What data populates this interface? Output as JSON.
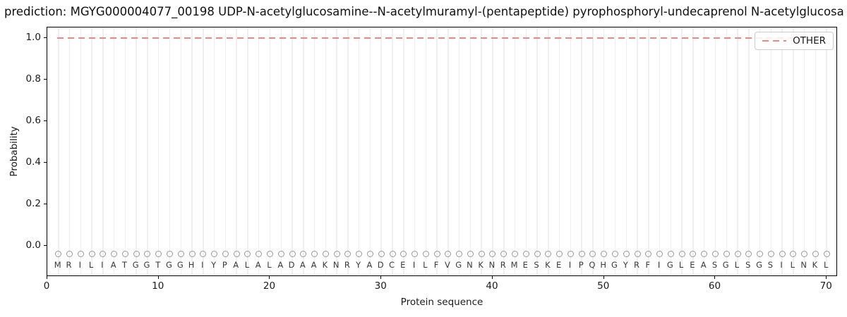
{
  "colors": {
    "other_line": "#ee8888",
    "grid": "#efefef",
    "marker_stroke": "#999999",
    "residue_letter": "#3a3a3a",
    "spine": "#000000"
  },
  "chart_data": {
    "type": "line",
    "title": "prediction: MGYG000004077_00198 UDP-N-acetylglucosamine--N-acetylmuramyl-(pentapeptide) pyrophosphoryl-undecaprenol N-acetylglucosa",
    "xlabel": "Protein sequence",
    "ylabel": "Probability",
    "xlim": [
      0,
      71
    ],
    "ylim": [
      -0.15,
      1.05
    ],
    "x_ticks": [
      {
        "v": 0,
        "label": "0"
      },
      {
        "v": 10,
        "label": "10"
      },
      {
        "v": 20,
        "label": "20"
      },
      {
        "v": 30,
        "label": "30"
      },
      {
        "v": 40,
        "label": "40"
      },
      {
        "v": 50,
        "label": "50"
      },
      {
        "v": 60,
        "label": "60"
      },
      {
        "v": 70,
        "label": "70"
      }
    ],
    "y_ticks": [
      {
        "v": 0.0,
        "label": "0.0"
      },
      {
        "v": 0.2,
        "label": "0.2"
      },
      {
        "v": 0.4,
        "label": "0.4"
      },
      {
        "v": 0.6,
        "label": "0.6"
      },
      {
        "v": 0.8,
        "label": "0.8"
      },
      {
        "v": 1.0,
        "label": "1.0"
      }
    ],
    "grid": "vertical gridline at each residue position, no horizontal gridlines",
    "legend": {
      "position": "upper right",
      "entries": [
        {
          "label": "OTHER",
          "color": "#ee8888",
          "style": "dashed"
        }
      ]
    },
    "sequence": "MRILIATGGTGGHIYPALALADAAKNRYADCEILFVGNKNRMESKEIPQHGYRFIGLEASGLSGSILNKL",
    "residue_marker_y": -0.04,
    "series": [
      {
        "name": "OTHER",
        "style": "dashed",
        "color": "#ee8888",
        "x_start": 1,
        "x_end": 70,
        "values": [
          1,
          1,
          1,
          1,
          1,
          1,
          1,
          1,
          1,
          1,
          1,
          1,
          1,
          1,
          1,
          1,
          1,
          1,
          1,
          1,
          1,
          1,
          1,
          1,
          1,
          1,
          1,
          1,
          1,
          1,
          1,
          1,
          1,
          1,
          1,
          1,
          1,
          1,
          1,
          1,
          1,
          1,
          1,
          1,
          1,
          1,
          1,
          1,
          1,
          1,
          1,
          1,
          1,
          1,
          1,
          1,
          1,
          1,
          1,
          1,
          1,
          1,
          1,
          1,
          1,
          1,
          1,
          1,
          1,
          1
        ]
      }
    ]
  }
}
